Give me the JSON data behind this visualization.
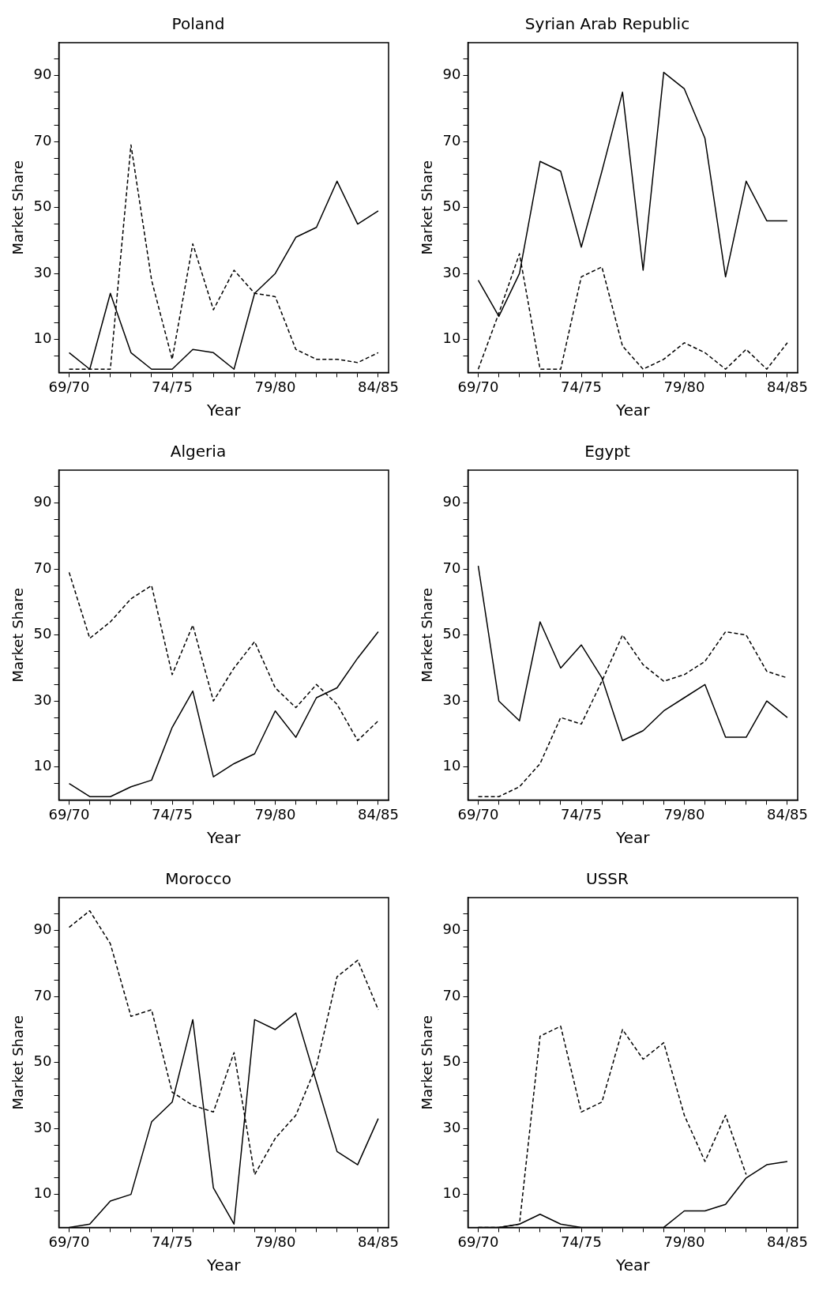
{
  "chart_data": [
    {
      "type": "line",
      "title": "Poland",
      "xlabel": "Year",
      "ylabel": "Market Share",
      "grid": false,
      "legend": false,
      "marker": "none",
      "categories": [
        "69/70",
        null,
        null,
        null,
        null,
        "74/75",
        null,
        null,
        null,
        null,
        "79/80",
        null,
        null,
        null,
        null,
        "84/85"
      ],
      "ylim": [
        0,
        100
      ],
      "yticks": [
        {
          "value": 5,
          "label": null
        },
        10,
        {
          "value": 15,
          "label": null
        },
        {
          "value": 20,
          "label": null
        },
        {
          "value": 25,
          "label": null
        },
        30,
        {
          "value": 35,
          "label": null
        },
        {
          "value": 40,
          "label": null
        },
        {
          "value": 45,
          "label": null
        },
        50,
        {
          "value": 55,
          "label": null
        },
        {
          "value": 60,
          "label": null
        },
        {
          "value": 65,
          "label": null
        },
        70,
        {
          "value": 75,
          "label": null
        },
        {
          "value": 80,
          "label": null
        },
        {
          "value": 85,
          "label": null
        },
        90,
        {
          "value": 95,
          "label": null
        }
      ],
      "series": [
        {
          "color": "#000000",
          "line_style": "solid",
          "values": [
            6,
            1,
            24,
            6,
            1,
            1,
            7,
            6,
            1,
            24,
            30,
            41,
            44,
            58,
            45,
            49
          ]
        },
        {
          "color": "#000000",
          "line_style": "dashed",
          "values": [
            1,
            1,
            1,
            69,
            28,
            4,
            39,
            19,
            31,
            24,
            23,
            7,
            4,
            4,
            3,
            6
          ]
        }
      ]
    },
    {
      "type": "line",
      "title": "Syrian Arab Republic",
      "xlabel": "Year",
      "ylabel": "Market Share",
      "grid": false,
      "legend": false,
      "marker": "none",
      "categories": [
        "69/70",
        null,
        null,
        null,
        null,
        "74/75",
        null,
        null,
        null,
        null,
        "79/80",
        null,
        null,
        null,
        null,
        "84/85"
      ],
      "ylim": [
        0,
        100
      ],
      "yticks": [
        {
          "value": 5,
          "label": null
        },
        10,
        {
          "value": 15,
          "label": null
        },
        {
          "value": 20,
          "label": null
        },
        {
          "value": 25,
          "label": null
        },
        30,
        {
          "value": 35,
          "label": null
        },
        {
          "value": 40,
          "label": null
        },
        {
          "value": 45,
          "label": null
        },
        50,
        {
          "value": 55,
          "label": null
        },
        {
          "value": 60,
          "label": null
        },
        {
          "value": 65,
          "label": null
        },
        70,
        {
          "value": 75,
          "label": null
        },
        {
          "value": 80,
          "label": null
        },
        {
          "value": 85,
          "label": null
        },
        90,
        {
          "value": 95,
          "label": null
        }
      ],
      "series": [
        {
          "color": "#000000",
          "line_style": "solid",
          "values": [
            28,
            17,
            30,
            64,
            61,
            38,
            61,
            85,
            31,
            91,
            86,
            71,
            29,
            58,
            46,
            46
          ]
        },
        {
          "color": "#000000",
          "line_style": "dashed",
          "values": [
            1,
            18,
            36,
            1,
            1,
            29,
            32,
            8,
            1,
            4,
            9,
            6,
            1,
            7,
            1,
            9
          ]
        }
      ]
    },
    {
      "type": "line",
      "title": "Algeria",
      "xlabel": "Year",
      "ylabel": "Market Share",
      "grid": false,
      "legend": false,
      "marker": "none",
      "categories": [
        "69/70",
        null,
        null,
        null,
        null,
        "74/75",
        null,
        null,
        null,
        null,
        "79/80",
        null,
        null,
        null,
        null,
        "84/85"
      ],
      "ylim": [
        0,
        100
      ],
      "yticks": [
        {
          "value": 5,
          "label": null
        },
        10,
        {
          "value": 15,
          "label": null
        },
        {
          "value": 20,
          "label": null
        },
        {
          "value": 25,
          "label": null
        },
        30,
        {
          "value": 35,
          "label": null
        },
        {
          "value": 40,
          "label": null
        },
        {
          "value": 45,
          "label": null
        },
        50,
        {
          "value": 55,
          "label": null
        },
        {
          "value": 60,
          "label": null
        },
        {
          "value": 65,
          "label": null
        },
        70,
        {
          "value": 75,
          "label": null
        },
        {
          "value": 80,
          "label": null
        },
        {
          "value": 85,
          "label": null
        },
        90,
        {
          "value": 95,
          "label": null
        }
      ],
      "series": [
        {
          "color": "#000000",
          "line_style": "solid",
          "values": [
            5,
            1,
            1,
            4,
            6,
            22,
            33,
            7,
            11,
            14,
            27,
            19,
            31,
            34,
            43,
            51
          ]
        },
        {
          "color": "#000000",
          "line_style": "dashed",
          "values": [
            69,
            49,
            54,
            61,
            65,
            38,
            53,
            30,
            40,
            48,
            34,
            28,
            35,
            29,
            18,
            24
          ]
        }
      ]
    },
    {
      "type": "line",
      "title": "Egypt",
      "xlabel": "Year",
      "ylabel": "Market Share",
      "grid": false,
      "legend": false,
      "marker": "none",
      "categories": [
        "69/70",
        null,
        null,
        null,
        null,
        "74/75",
        null,
        null,
        null,
        null,
        "79/80",
        null,
        null,
        null,
        null,
        "84/85"
      ],
      "ylim": [
        0,
        100
      ],
      "yticks": [
        {
          "value": 5,
          "label": null
        },
        10,
        {
          "value": 15,
          "label": null
        },
        {
          "value": 20,
          "label": null
        },
        {
          "value": 25,
          "label": null
        },
        30,
        {
          "value": 35,
          "label": null
        },
        {
          "value": 40,
          "label": null
        },
        {
          "value": 45,
          "label": null
        },
        50,
        {
          "value": 55,
          "label": null
        },
        {
          "value": 60,
          "label": null
        },
        {
          "value": 65,
          "label": null
        },
        70,
        {
          "value": 75,
          "label": null
        },
        {
          "value": 80,
          "label": null
        },
        {
          "value": 85,
          "label": null
        },
        90,
        {
          "value": 95,
          "label": null
        }
      ],
      "series": [
        {
          "color": "#000000",
          "line_style": "solid",
          "values": [
            71,
            30,
            24,
            54,
            40,
            47,
            37,
            18,
            21,
            27,
            31,
            35,
            19,
            19,
            30,
            25
          ]
        },
        {
          "color": "#000000",
          "line_style": "dashed",
          "values": [
            1,
            1,
            4,
            11,
            25,
            23,
            36,
            50,
            41,
            36,
            38,
            42,
            51,
            50,
            39,
            37
          ]
        }
      ]
    },
    {
      "type": "line",
      "title": "Morocco",
      "xlabel": "Year",
      "ylabel": "Market Share",
      "grid": false,
      "legend": false,
      "marker": "none",
      "categories": [
        "69/70",
        null,
        null,
        null,
        null,
        "74/75",
        null,
        null,
        null,
        null,
        "79/80",
        null,
        null,
        null,
        null,
        "84/85"
      ],
      "ylim": [
        0,
        100
      ],
      "yticks": [
        {
          "value": 5,
          "label": null
        },
        10,
        {
          "value": 15,
          "label": null
        },
        {
          "value": 20,
          "label": null
        },
        {
          "value": 25,
          "label": null
        },
        30,
        {
          "value": 35,
          "label": null
        },
        {
          "value": 40,
          "label": null
        },
        {
          "value": 45,
          "label": null
        },
        50,
        {
          "value": 55,
          "label": null
        },
        {
          "value": 60,
          "label": null
        },
        {
          "value": 65,
          "label": null
        },
        70,
        {
          "value": 75,
          "label": null
        },
        {
          "value": 80,
          "label": null
        },
        {
          "value": 85,
          "label": null
        },
        90,
        {
          "value": 95,
          "label": null
        }
      ],
      "series": [
        {
          "color": "#000000",
          "line_style": "solid",
          "values": [
            0,
            1,
            8,
            10,
            32,
            38,
            63,
            12,
            1,
            63,
            60,
            65,
            44,
            23,
            19,
            33
          ]
        },
        {
          "color": "#000000",
          "line_style": "dashed",
          "values": [
            91,
            96,
            86,
            64,
            66,
            41,
            37,
            35,
            53,
            16,
            27,
            34,
            49,
            76,
            81,
            66
          ]
        }
      ]
    },
    {
      "type": "line",
      "title": "USSR",
      "xlabel": "Year",
      "ylabel": "Market Share",
      "grid": false,
      "legend": false,
      "marker": "none",
      "categories": [
        "69/70",
        null,
        null,
        null,
        null,
        "74/75",
        null,
        null,
        null,
        null,
        "79/80",
        null,
        null,
        null,
        null,
        "84/85"
      ],
      "ylim": [
        0,
        100
      ],
      "yticks": [
        {
          "value": 5,
          "label": null
        },
        10,
        {
          "value": 15,
          "label": null
        },
        {
          "value": 20,
          "label": null
        },
        {
          "value": 25,
          "label": null
        },
        30,
        {
          "value": 35,
          "label": null
        },
        {
          "value": 40,
          "label": null
        },
        {
          "value": 45,
          "label": null
        },
        50,
        {
          "value": 55,
          "label": null
        },
        {
          "value": 60,
          "label": null
        },
        {
          "value": 65,
          "label": null
        },
        70,
        {
          "value": 75,
          "label": null
        },
        {
          "value": 80,
          "label": null
        },
        {
          "value": 85,
          "label": null
        },
        90,
        {
          "value": 95,
          "label": null
        }
      ],
      "series": [
        {
          "color": "#000000",
          "line_style": "solid",
          "values": [
            0,
            0,
            1,
            4,
            1,
            0,
            0,
            0,
            0,
            0,
            5,
            5,
            7,
            15,
            19,
            20
          ]
        },
        {
          "color": "#000000",
          "line_style": "dashed",
          "values": [
            0,
            0,
            1,
            58,
            61,
            35,
            38,
            60,
            51,
            56,
            34,
            20,
            34,
            16,
            null,
            null
          ]
        }
      ]
    }
  ]
}
